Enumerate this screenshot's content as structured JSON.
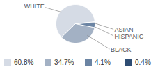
{
  "chart_data": {
    "type": "pie",
    "categories": [
      "WHITE",
      "BLACK",
      "HISPANIC",
      "ASIAN"
    ],
    "values": [
      60.8,
      34.7,
      4.1,
      0.4
    ],
    "value_labels": [
      "60.8%",
      "34.7%",
      "4.1%",
      "0.4%"
    ],
    "colors": [
      "#d5dbe5",
      "#a3b1c4",
      "#6b84a3",
      "#2e4d73"
    ],
    "legend": "bottom"
  }
}
